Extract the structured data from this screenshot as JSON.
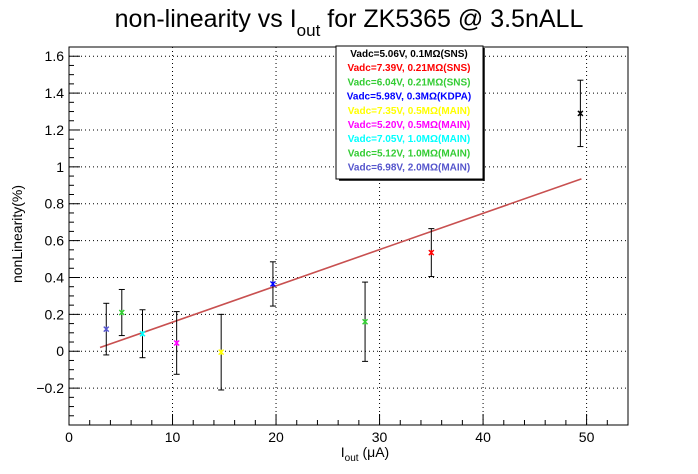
{
  "chart_data": {
    "type": "scatter",
    "title": {
      "main": "non-linearity vs I",
      "sub": "out",
      "suffix": " for ZK5365 @ 3.5nALL"
    },
    "xlabel": {
      "main": "I",
      "sub": "out",
      "unit": " (μA)"
    },
    "ylabel": "nonLinearity(%)",
    "xlim": [
      0,
      54
    ],
    "ylim": [
      -0.4,
      1.65
    ],
    "xticks": [
      "0",
      "10",
      "20",
      "30",
      "40",
      "50"
    ],
    "yticks": [
      "−0.2",
      "0",
      "0.2",
      "0.4",
      "0.6",
      "0.8",
      "1",
      "1.2",
      "1.4",
      "1.6"
    ],
    "grid": true,
    "legend_position": "top-center",
    "series": [
      {
        "name": "Vadc=5.06V, 0.1MΩ(SNS)",
        "color": "#000000",
        "x": [
          49.4
        ],
        "y": [
          1.29
        ],
        "yerr": [
          0.18
        ]
      },
      {
        "name": "Vadc=7.39V, 0.21MΩ(SNS)",
        "color": "#ff0000",
        "x": [
          35.0
        ],
        "y": [
          0.535
        ],
        "yerr": [
          0.13
        ]
      },
      {
        "name": "Vadc=6.04V, 0.21MΩ(SNS)",
        "color": "#33cc33",
        "x": [
          28.6
        ],
        "y": [
          0.16
        ],
        "yerr": [
          0.215
        ]
      },
      {
        "name": "Vadc=5.98V, 0.3MΩ(KDPA)",
        "color": "#0000ff",
        "x": [
          19.7
        ],
        "y": [
          0.365
        ],
        "yerr": [
          0.12
        ]
      },
      {
        "name": "Vadc=7.35V, 0.5MΩ(MAIN)",
        "color": "#ffff00",
        "x": [
          14.7
        ],
        "y": [
          -0.005
        ],
        "yerr": [
          0.205
        ]
      },
      {
        "name": "Vadc=5.20V, 0.5MΩ(MAIN)",
        "color": "#ff00ff",
        "x": [
          10.4
        ],
        "y": [
          0.045
        ],
        "yerr": [
          0.17
        ]
      },
      {
        "name": "Vadc=7.05V, 1.0MΩ(MAIN)",
        "color": "#00ffff",
        "x": [
          7.1
        ],
        "y": [
          0.095
        ],
        "yerr": [
          0.13
        ]
      },
      {
        "name": "Vadc=5.12V, 1.0MΩ(MAIN)",
        "color": "#33cc33",
        "x": [
          5.1
        ],
        "y": [
          0.21
        ],
        "yerr": [
          0.125
        ]
      },
      {
        "name": "Vadc=6.98V, 2.0MΩ(MAIN)",
        "color": "#5555cc",
        "x": [
          3.6
        ],
        "y": [
          0.12
        ],
        "yerr": [
          0.14
        ]
      }
    ],
    "fit_line": {
      "color": "#c85050",
      "x": [
        3.0,
        49.5
      ],
      "y": [
        0.02,
        0.935
      ]
    }
  }
}
